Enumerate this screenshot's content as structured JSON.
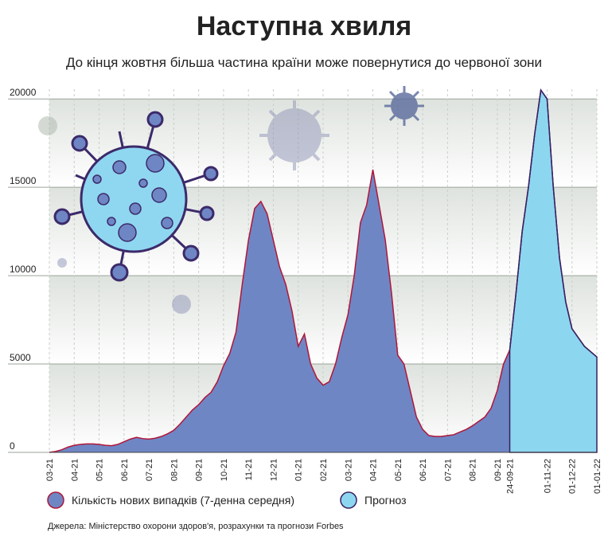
{
  "chart_data": {
    "type": "area",
    "title": "Наступна хвиля",
    "subtitle": "До кінця жовтня більша частина країни може повернутися до червоної зони",
    "source": "Джерела: Міністерство охорони здоров'я, розрахунки та прогнози Forbes",
    "categories": [
      "03-21",
      null,
      null,
      null,
      "04-21",
      null,
      null,
      null,
      "05-21",
      null,
      null,
      null,
      "06-21",
      null,
      null,
      null,
      "07-21",
      null,
      null,
      null,
      "08-21",
      null,
      null,
      null,
      "09-21",
      null,
      null,
      null,
      "10-21",
      null,
      null,
      null,
      "11-21",
      null,
      null,
      null,
      "12-21",
      null,
      null,
      null,
      "01-21",
      null,
      null,
      null,
      "02-21",
      null,
      null,
      null,
      "03-21",
      null,
      null,
      null,
      "04-21",
      null,
      null,
      null,
      "05-21",
      null,
      null,
      null,
      "06-21",
      null,
      null,
      null,
      "07-21",
      null,
      null,
      null,
      "08-21",
      null,
      null,
      null,
      "09-21",
      null,
      "24-09-21",
      null,
      null,
      null,
      null,
      null,
      "01-11-22",
      null,
      null,
      null,
      "01-12-22",
      null,
      null,
      null,
      "01-01-22"
    ],
    "series": [
      {
        "name": "Кількість нових випадків (7-денна середня)",
        "color": "#6f86c4",
        "line_color": "#b0163a",
        "values": [
          0,
          50,
          150,
          300,
          400,
          450,
          480,
          480,
          450,
          400,
          380,
          450,
          600,
          750,
          850,
          780,
          750,
          800,
          900,
          1050,
          1250,
          1600,
          2000,
          2400,
          2700,
          3100,
          3400,
          4000,
          4900,
          5600,
          6800,
          9500,
          12000,
          13800,
          14200,
          13500,
          12000,
          10500,
          9500,
          8000,
          6000,
          6700,
          5000,
          4200,
          3800,
          4000,
          5000,
          6500,
          7800,
          10000,
          13000,
          14000,
          16000,
          14000,
          12000,
          9000,
          5500,
          5000,
          3500,
          2000,
          1300,
          950,
          900,
          900,
          950,
          1000,
          1150,
          1300,
          1500,
          1750,
          2000,
          2500,
          3500,
          5000,
          5800,
          null,
          null,
          null,
          null,
          null,
          null,
          null,
          null,
          null,
          null,
          null,
          null,
          null,
          null
        ]
      },
      {
        "name": "Прогноз",
        "color": "#8dd6f0",
        "line_color": "#3a2060",
        "values": [
          null,
          null,
          null,
          null,
          null,
          null,
          null,
          null,
          null,
          null,
          null,
          null,
          null,
          null,
          null,
          null,
          null,
          null,
          null,
          null,
          null,
          null,
          null,
          null,
          null,
          null,
          null,
          null,
          null,
          null,
          null,
          null,
          null,
          null,
          null,
          null,
          null,
          null,
          null,
          null,
          null,
          null,
          null,
          null,
          null,
          null,
          null,
          null,
          null,
          null,
          null,
          null,
          null,
          null,
          null,
          null,
          null,
          null,
          null,
          null,
          null,
          null,
          null,
          null,
          null,
          null,
          null,
          null,
          null,
          null,
          null,
          null,
          null,
          null,
          5800,
          9000,
          12500,
          15000,
          18000,
          20500,
          20000,
          15000,
          11000,
          8500,
          7000,
          6500,
          6000,
          5700,
          5400
        ]
      }
    ],
    "ylim": [
      0,
      21000
    ],
    "yticks": [
      0,
      5000,
      10000,
      15000,
      20000
    ],
    "grid": true
  }
}
